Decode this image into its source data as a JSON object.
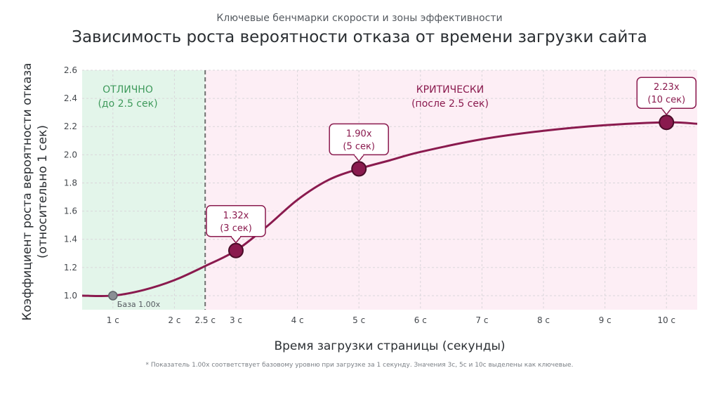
{
  "chart_data": {
    "type": "line",
    "subtitle": "Ключевые бенчмарки скорости и зоны эффективности",
    "title": "Зависимость роста вероятности отказа от времени загрузки сайта",
    "xlabel": "Время загрузки страницы (секунды)",
    "ylabel_line1": "Коэффициент роста вероятности отказа",
    "ylabel_line2": "(относительно 1 сек)",
    "xlim": [
      0.5,
      10.5
    ],
    "ylim": [
      0.9,
      2.6
    ],
    "x_ticks": [
      {
        "value": 1,
        "label": "1 с"
      },
      {
        "value": 2,
        "label": "2 с"
      },
      {
        "value": 2.5,
        "label": "2.5 с"
      },
      {
        "value": 3,
        "label": "3 с"
      },
      {
        "value": 4,
        "label": "4 с"
      },
      {
        "value": 5,
        "label": "5 с"
      },
      {
        "value": 6,
        "label": "6 с"
      },
      {
        "value": 7,
        "label": "7 с"
      },
      {
        "value": 8,
        "label": "8 с"
      },
      {
        "value": 9,
        "label": "9 с"
      },
      {
        "value": 10,
        "label": "10 с"
      }
    ],
    "y_ticks": [
      {
        "value": 1.0,
        "label": "1.0"
      },
      {
        "value": 1.2,
        "label": "1.2"
      },
      {
        "value": 1.4,
        "label": "1.4"
      },
      {
        "value": 1.6,
        "label": "1.6"
      },
      {
        "value": 1.8,
        "label": "1.8"
      },
      {
        "value": 2.0,
        "label": "2.0"
      },
      {
        "value": 2.2,
        "label": "2.2"
      },
      {
        "value": 2.4,
        "label": "2.4"
      },
      {
        "value": 2.6,
        "label": "2.6"
      }
    ],
    "grid": true,
    "zones": [
      {
        "label_line1": "ОТЛИЧНО",
        "label_line2": "(до 2.5 сек)",
        "x_from": 0.5,
        "x_to": 2.5,
        "color": "#e3f5ea",
        "text_color": "#3f9a5c"
      },
      {
        "label_line1": "КРИТИЧЕСКИ",
        "label_line2": "(после 2.5 сек)",
        "x_from": 2.5,
        "x_to": 10.5,
        "color": "#fdeef5",
        "text_color": "#8a1a4e"
      }
    ],
    "threshold_x": 2.5,
    "series": [
      {
        "color": "#8a1a4e",
        "x": [
          0.5,
          1.0,
          1.5,
          2.0,
          2.5,
          3.0,
          3.5,
          4.0,
          4.5,
          5.0,
          5.5,
          6.0,
          7.0,
          8.0,
          9.0,
          10.0,
          10.5
        ],
        "values": [
          1.0,
          1.0,
          1.04,
          1.11,
          1.21,
          1.32,
          1.49,
          1.68,
          1.82,
          1.9,
          1.96,
          2.02,
          2.11,
          2.17,
          2.21,
          2.23,
          2.22
        ]
      }
    ],
    "highlight_points": [
      {
        "x": 1,
        "y": 1.0,
        "label": "База 1.00x",
        "style": "base"
      },
      {
        "x": 3,
        "y": 1.32,
        "label_line1": "1.32x",
        "label_line2": "(3 сек)",
        "style": "key"
      },
      {
        "x": 5,
        "y": 1.9,
        "label_line1": "1.90x",
        "label_line2": "(5 сек)",
        "style": "key"
      },
      {
        "x": 10,
        "y": 2.23,
        "label_line1": "2.23x",
        "label_line2": "(10 сек)",
        "style": "key"
      }
    ],
    "footnote": "* Показатель 1.00x соответствует базовому уровню при загрузке за 1 секунду. Значения 3с, 5с и 10с выделены как ключевые."
  }
}
